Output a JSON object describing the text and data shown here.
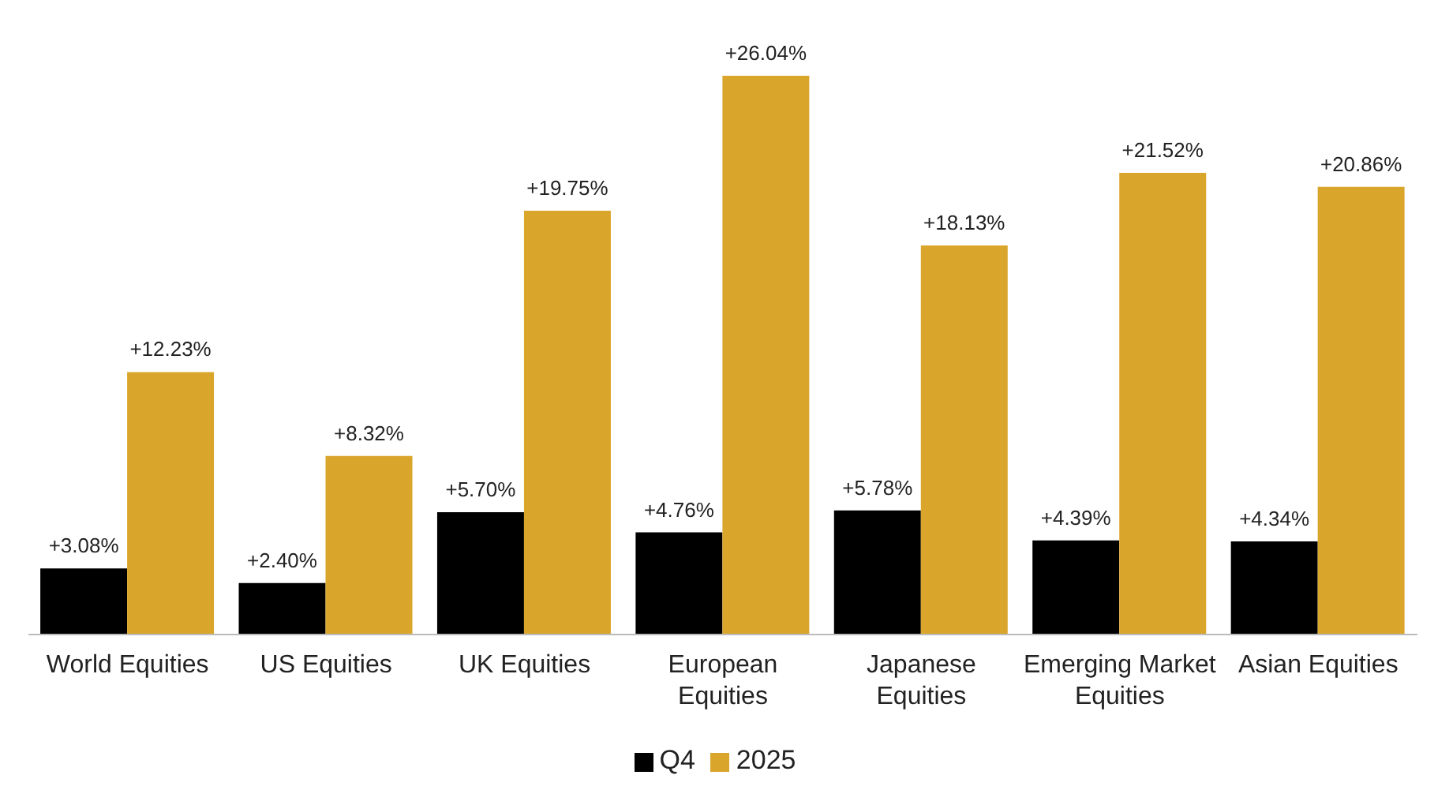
{
  "chart_data": {
    "type": "bar",
    "categories": [
      "World Equities",
      "US Equities",
      "UK Equities",
      "European Equities",
      "Japanese Equities",
      "Emerging Market Equities",
      "Asian Equities"
    ],
    "series": [
      {
        "name": "Q4",
        "color": "#000000",
        "values": [
          3.08,
          2.4,
          5.7,
          4.76,
          5.78,
          4.39,
          4.34
        ],
        "value_labels": [
          "+3.08%",
          "+2.40%",
          "+5.70%",
          "+4.76%",
          "+5.78%",
          "+4.39%",
          "+4.34%"
        ]
      },
      {
        "name": "2025",
        "color": "#daa52b",
        "values": [
          12.23,
          8.32,
          19.75,
          26.04,
          18.13,
          21.52,
          20.86
        ],
        "value_labels": [
          "+12.23%",
          "+8.32%",
          "+19.75%",
          "+26.04%",
          "+18.13%",
          "+21.52%",
          "+20.86%"
        ]
      }
    ],
    "legend": "bottom",
    "grid": false
  }
}
